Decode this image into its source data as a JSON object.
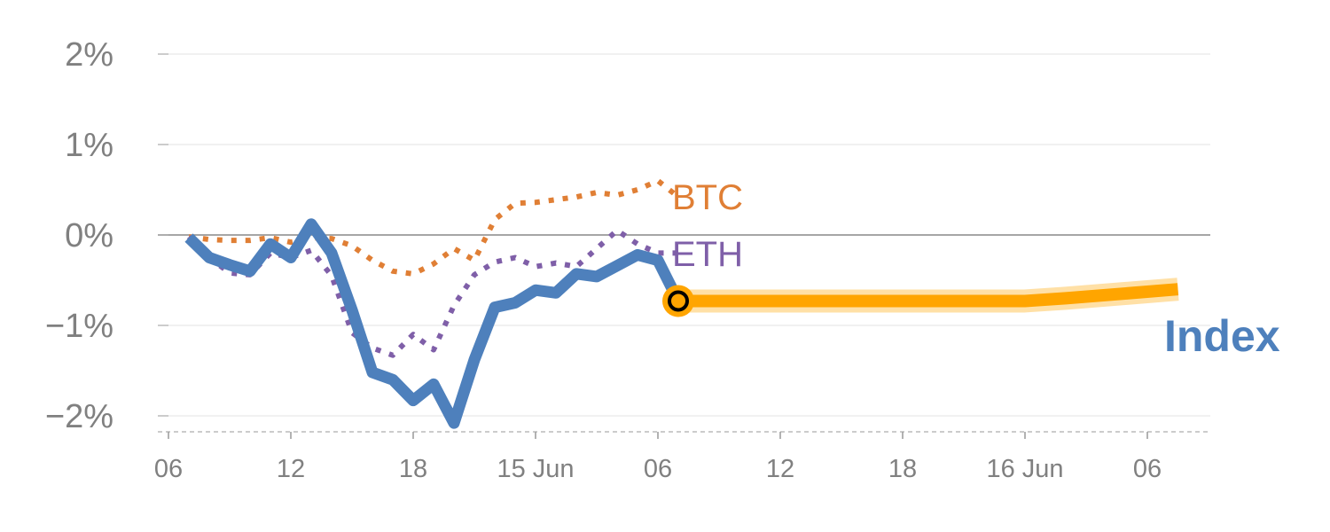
{
  "chart_data": {
    "type": "line",
    "title": "",
    "xlabel": "",
    "ylabel": "",
    "x_unit": "hours since 06:00 14 Jun",
    "xlim": [
      0,
      51
    ],
    "ylim": [
      -2.15,
      2.15
    ],
    "grid": true,
    "y_ticks": [
      {
        "value": 2,
        "label": "2%"
      },
      {
        "value": 1,
        "label": "1%"
      },
      {
        "value": 0,
        "label": "0%"
      },
      {
        "value": -1,
        "label": "−1%"
      },
      {
        "value": -2,
        "label": "−2%"
      }
    ],
    "x_ticks": [
      {
        "value": 0,
        "label": "06"
      },
      {
        "value": 6,
        "label": "12"
      },
      {
        "value": 12,
        "label": "18"
      },
      {
        "value": 18,
        "label": "15 Jun"
      },
      {
        "value": 24,
        "label": "06"
      },
      {
        "value": 30,
        "label": "12"
      },
      {
        "value": 36,
        "label": "18"
      },
      {
        "value": 42,
        "label": "16 Jun"
      },
      {
        "value": 48,
        "label": "06"
      }
    ],
    "x": [
      1,
      2,
      3,
      4,
      5,
      6,
      7,
      8,
      9,
      10,
      11,
      12,
      13,
      14,
      15,
      16,
      17,
      18,
      19,
      20,
      21,
      22,
      23,
      24,
      25
    ],
    "series": [
      {
        "name": "BTC",
        "label": "BTC",
        "color": "#E07F35",
        "style": "dotted",
        "values": [
          -0.02,
          -0.05,
          -0.06,
          -0.06,
          -0.03,
          -0.08,
          -0.03,
          -0.04,
          -0.12,
          -0.28,
          -0.4,
          -0.43,
          -0.32,
          -0.15,
          -0.28,
          0.17,
          0.35,
          0.36,
          0.39,
          0.42,
          0.47,
          0.44,
          0.5,
          0.6,
          0.42
        ]
      },
      {
        "name": "ETH",
        "label": "ETH",
        "color": "#7F5FA8",
        "style": "dotted",
        "values": [
          -0.02,
          -0.25,
          -0.42,
          -0.44,
          -0.2,
          -0.25,
          -0.17,
          -0.45,
          -1.08,
          -1.25,
          -1.33,
          -1.1,
          -1.27,
          -0.78,
          -0.44,
          -0.3,
          -0.25,
          -0.35,
          -0.31,
          -0.35,
          -0.15,
          0.05,
          -0.1,
          -0.2,
          -0.2
        ]
      },
      {
        "name": "Index",
        "label": "Index",
        "color": "#4E80BC",
        "style": "solid",
        "values": [
          -0.03,
          -0.25,
          -0.33,
          -0.4,
          -0.1,
          -0.25,
          0.12,
          -0.2,
          -0.83,
          -1.52,
          -1.6,
          -1.83,
          -1.65,
          -2.08,
          -1.38,
          -0.8,
          -0.75,
          -0.61,
          -0.64,
          -0.43,
          -0.46,
          -0.34,
          -0.22,
          -0.28,
          -0.73
        ]
      }
    ],
    "forecast": {
      "color": "#FFA500",
      "x": [
        25,
        42,
        44,
        49.5
      ],
      "values": [
        -0.73,
        -0.73,
        -0.7,
        -0.6
      ]
    },
    "current_marker": {
      "x": 25,
      "value": -0.73
    }
  }
}
